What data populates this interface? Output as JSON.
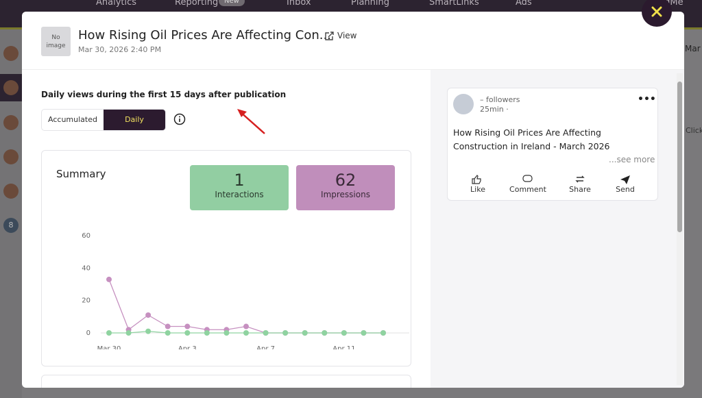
{
  "nav": {
    "items": [
      "Analytics",
      "Reporting",
      "Inbox",
      "Planning",
      "SmartLinks",
      "Ads"
    ],
    "badge": "New",
    "account": "ctingMe"
  },
  "background": {
    "date_button": "Mar",
    "column": "Click",
    "sidebar_count": "8"
  },
  "header": {
    "image_placeholder": "No image",
    "title": "How Rising Oil Prices Are Affecting Con...",
    "date": "Mar 30, 2026 2:40 PM",
    "view": "View"
  },
  "subtitle": "Daily views during the first 15 days after publication",
  "toggle": [
    "Accumulated",
    "Daily"
  ],
  "summary": {
    "title": "Summary",
    "cards": [
      {
        "value": "1",
        "label": "Interactions"
      },
      {
        "value": "62",
        "label": "Impressions"
      }
    ]
  },
  "chart_data": {
    "type": "line",
    "categories": [
      "Mar 30",
      null,
      null,
      null,
      "Apr 3",
      null,
      null,
      null,
      "Apr 7",
      null,
      null,
      null,
      "Apr 11",
      null,
      null
    ],
    "series": [
      {
        "name": "Impressions",
        "color": "#c690c0",
        "values": [
          33,
          2,
          11,
          4,
          4,
          2,
          2,
          4,
          0,
          0,
          0,
          0,
          0,
          0,
          0
        ]
      },
      {
        "name": "Interactions",
        "color": "#8fd3a0",
        "values": [
          0,
          0,
          1,
          0,
          0,
          0,
          0,
          0,
          0,
          0,
          0,
          0,
          0,
          0,
          0
        ]
      }
    ],
    "ylim": [
      0,
      60
    ],
    "yticks": [
      0,
      20,
      40,
      60
    ]
  },
  "post": {
    "followers": "– followers",
    "time": "25min ·",
    "text": "How Rising Oil Prices Are Affecting Construction in Ireland - March 2026",
    "see_more": "...see more",
    "actions": [
      "Like",
      "Comment",
      "Share",
      "Send"
    ]
  }
}
